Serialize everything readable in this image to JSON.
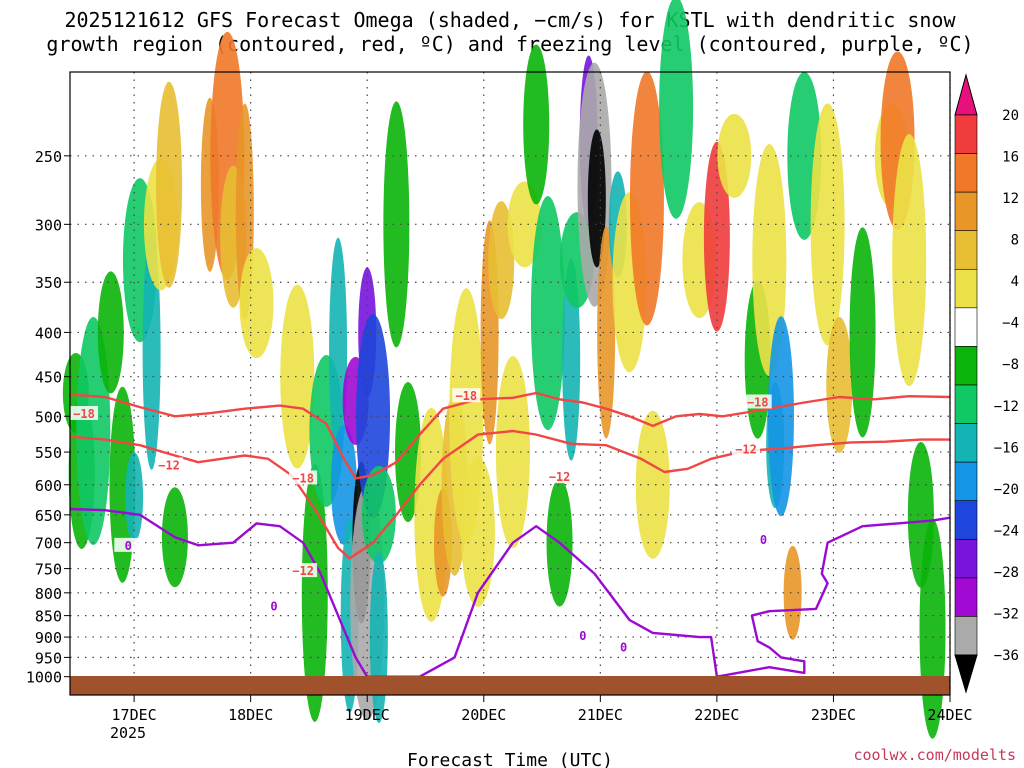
{
  "chart_data": {
    "type": "time-height cross section",
    "title_line1": "2025121612 GFS Forecast Omega (shaded, −cm/s) for KSTL with dendritic snow",
    "title_line2": "growth region (contoured, red, ºC) and freezing level (contoured, purple, ºC)",
    "xlabel": "Forecast Time (UTC)",
    "year_label": "2025",
    "credit": "coolwx.com/modelts",
    "x_range_days": [
      0,
      7.55
    ],
    "x_ticks": [
      {
        "label": "24DEC",
        "day": 7.55
      },
      {
        "label": "23DEC",
        "day": 6.55
      },
      {
        "label": "22DEC",
        "day": 5.55
      },
      {
        "label": "21DEC",
        "day": 4.55
      },
      {
        "label": "20DEC",
        "day": 3.55
      },
      {
        "label": "19DEC",
        "day": 2.55
      },
      {
        "label": "18DEC",
        "day": 1.55
      },
      {
        "label": "17DEC",
        "day": 0.55
      }
    ],
    "y_axis": {
      "scale": "log-pressure",
      "units": "hPa",
      "range": [
        1050,
        200
      ],
      "ticks": [
        250,
        300,
        350,
        400,
        450,
        500,
        550,
        600,
        650,
        700,
        750,
        800,
        850,
        900,
        950,
        1000
      ]
    },
    "colorbar": {
      "units": "-cm/s",
      "labels": [
        "20",
        "16",
        "12",
        "8",
        "4",
        "−4",
        "−8",
        "−12",
        "−16",
        "−20",
        "−24",
        "−28",
        "−32",
        "−36"
      ],
      "colors": [
        "#e8107a",
        "#f03c3c",
        "#f07828",
        "#e89628",
        "#e8be32",
        "#ebe146",
        "#ffffff",
        "#0ab40a",
        "#10c864",
        "#14b4b4",
        "#1496e6",
        "#1e46dc",
        "#7814dc",
        "#a00ad2",
        "#aaaaaa",
        "#000000"
      ]
    },
    "series": [
      {
        "name": "dendritic growth -18C isotherm",
        "color": "#f04646",
        "label": "−18",
        "points": [
          [
            0,
            472
          ],
          [
            0.3,
            475
          ],
          [
            0.6,
            488
          ],
          [
            0.9,
            500
          ],
          [
            1.2,
            496
          ],
          [
            1.5,
            490
          ],
          [
            1.8,
            486
          ],
          [
            2.0,
            490
          ],
          [
            2.2,
            510
          ],
          [
            2.35,
            560
          ],
          [
            2.45,
            590
          ],
          [
            2.6,
            585
          ],
          [
            2.8,
            565
          ],
          [
            3.0,
            525
          ],
          [
            3.2,
            490
          ],
          [
            3.5,
            478
          ],
          [
            3.8,
            476
          ],
          [
            4.0,
            470
          ],
          [
            4.2,
            478
          ],
          [
            4.4,
            482
          ],
          [
            4.6,
            490
          ],
          [
            4.8,
            500
          ],
          [
            5.0,
            513
          ],
          [
            5.2,
            500
          ],
          [
            5.4,
            497
          ],
          [
            5.6,
            500
          ],
          [
            5.8,
            495
          ],
          [
            6.0,
            490
          ],
          [
            6.3,
            482
          ],
          [
            6.6,
            475
          ],
          [
            6.9,
            478
          ],
          [
            7.2,
            474
          ],
          [
            7.55,
            475
          ]
        ]
      },
      {
        "name": "dendritic growth -12C isotherm",
        "color": "#f04646",
        "label": "−12",
        "points": [
          [
            0,
            528
          ],
          [
            0.3,
            532
          ],
          [
            0.6,
            540
          ],
          [
            0.9,
            555
          ],
          [
            1.1,
            565
          ],
          [
            1.3,
            560
          ],
          [
            1.5,
            555
          ],
          [
            1.7,
            560
          ],
          [
            1.9,
            585
          ],
          [
            2.1,
            640
          ],
          [
            2.3,
            710
          ],
          [
            2.4,
            730
          ],
          [
            2.6,
            700
          ],
          [
            2.8,
            650
          ],
          [
            3.0,
            600
          ],
          [
            3.2,
            560
          ],
          [
            3.5,
            525
          ],
          [
            3.8,
            520
          ],
          [
            4.0,
            525
          ],
          [
            4.3,
            538
          ],
          [
            4.6,
            540
          ],
          [
            4.9,
            560
          ],
          [
            5.1,
            580
          ],
          [
            5.3,
            575
          ],
          [
            5.5,
            560
          ],
          [
            5.8,
            548
          ],
          [
            6.1,
            545
          ],
          [
            6.4,
            540
          ],
          [
            6.7,
            536
          ],
          [
            7.0,
            535
          ],
          [
            7.3,
            532
          ],
          [
            7.55,
            532
          ]
        ]
      },
      {
        "name": "freezing level 0C",
        "color": "#9a0ad2",
        "label": "0",
        "points": [
          [
            0,
            640
          ],
          [
            0.3,
            642
          ],
          [
            0.6,
            650
          ],
          [
            0.9,
            690
          ],
          [
            1.1,
            705
          ],
          [
            1.4,
            700
          ],
          [
            1.6,
            665
          ],
          [
            1.8,
            670
          ],
          [
            2.0,
            700
          ],
          [
            2.15,
            760
          ],
          [
            2.3,
            850
          ],
          [
            2.45,
            950
          ],
          [
            2.55,
            1000
          ],
          [
            3.0,
            1000
          ],
          [
            3.3,
            950
          ],
          [
            3.5,
            800
          ],
          [
            3.8,
            700
          ],
          [
            4.0,
            670
          ],
          [
            4.2,
            700
          ],
          [
            4.5,
            760
          ],
          [
            4.8,
            860
          ],
          [
            5.0,
            890
          ],
          [
            5.2,
            895
          ],
          [
            5.4,
            900
          ],
          [
            5.5,
            900
          ],
          [
            5.55,
            1000
          ],
          [
            6.0,
            975
          ],
          [
            6.3,
            990
          ],
          [
            6.3,
            960
          ],
          [
            6.1,
            950
          ],
          [
            6.0,
            925
          ],
          [
            5.9,
            910
          ],
          [
            5.85,
            850
          ],
          [
            6.0,
            840
          ],
          [
            6.4,
            835
          ],
          [
            6.5,
            780
          ],
          [
            6.45,
            760
          ],
          [
            6.5,
            700
          ],
          [
            6.8,
            670
          ],
          [
            7.1,
            665
          ],
          [
            7.4,
            660
          ],
          [
            7.55,
            655
          ]
        ]
      }
    ],
    "contour_labels": [
      {
        "text": "−18",
        "day": 0.12,
        "p": 497
      },
      {
        "text": "−12",
        "day": 0.85,
        "p": 570
      },
      {
        "text": "−18",
        "day": 2.0,
        "p": 590
      },
      {
        "text": "−12",
        "day": 2.0,
        "p": 755
      },
      {
        "text": "−18",
        "day": 3.4,
        "p": 474
      },
      {
        "text": "−12",
        "day": 4.2,
        "p": 588
      },
      {
        "text": "−18",
        "day": 5.9,
        "p": 482
      },
      {
        "text": "−12",
        "day": 5.8,
        "p": 546
      },
      {
        "text": "0",
        "day": 0.5,
        "p": 706
      },
      {
        "text": "0",
        "day": 1.75,
        "p": 830
      },
      {
        "text": "0",
        "day": 4.4,
        "p": 898
      },
      {
        "text": "0",
        "day": 4.75,
        "p": 925
      },
      {
        "text": "0",
        "day": 5.95,
        "p": 695
      }
    ],
    "omega_cells": [
      {
        "day": 0.05,
        "p": 470,
        "c": 7
      },
      {
        "day": 0.1,
        "p": 580,
        "c": 7
      },
      {
        "day": 0.2,
        "p": 520,
        "c": 8
      },
      {
        "day": 0.35,
        "p": 400,
        "c": 7
      },
      {
        "day": 0.45,
        "p": 600,
        "c": 7
      },
      {
        "day": 0.55,
        "p": 620,
        "c": 9
      },
      {
        "day": 0.6,
        "p": 330,
        "c": 8
      },
      {
        "day": 0.7,
        "p": 420,
        "c": 9
      },
      {
        "day": 0.78,
        "p": 300,
        "c": 5
      },
      {
        "day": 0.85,
        "p": 270,
        "c": 4
      },
      {
        "day": 0.9,
        "p": 690,
        "c": 7
      },
      {
        "day": 1.2,
        "p": 270,
        "c": 3
      },
      {
        "day": 1.35,
        "p": 250,
        "c": 2
      },
      {
        "day": 1.4,
        "p": 310,
        "c": 4
      },
      {
        "day": 1.5,
        "p": 290,
        "c": 3
      },
      {
        "day": 1.6,
        "p": 370,
        "c": 5
      },
      {
        "day": 1.95,
        "p": 450,
        "c": 5
      },
      {
        "day": 2.1,
        "p": 800,
        "c": 7
      },
      {
        "day": 2.2,
        "p": 520,
        "c": 8
      },
      {
        "day": 2.3,
        "p": 420,
        "c": 9
      },
      {
        "day": 2.35,
        "p": 600,
        "c": 10
      },
      {
        "day": 2.4,
        "p": 850,
        "c": 9
      },
      {
        "day": 2.45,
        "p": 480,
        "c": 13
      },
      {
        "day": 2.5,
        "p": 700,
        "c": 15
      },
      {
        "day": 2.55,
        "p": 820,
        "c": 14
      },
      {
        "day": 2.55,
        "p": 400,
        "c": 12
      },
      {
        "day": 2.6,
        "p": 500,
        "c": 11
      },
      {
        "day": 2.65,
        "p": 650,
        "c": 8
      },
      {
        "day": 2.65,
        "p": 900,
        "c": 9
      },
      {
        "day": 2.8,
        "p": 300,
        "c": 7
      },
      {
        "day": 2.9,
        "p": 550,
        "c": 7
      },
      {
        "day": 3.1,
        "p": 650,
        "c": 5
      },
      {
        "day": 3.2,
        "p": 700,
        "c": 3
      },
      {
        "day": 3.3,
        "p": 600,
        "c": 4
      },
      {
        "day": 3.4,
        "p": 500,
        "c": 5
      },
      {
        "day": 3.5,
        "p": 680,
        "c": 5
      },
      {
        "day": 3.6,
        "p": 400,
        "c": 3
      },
      {
        "day": 3.7,
        "p": 330,
        "c": 4
      },
      {
        "day": 3.8,
        "p": 550,
        "c": 5
      },
      {
        "day": 3.9,
        "p": 300,
        "c": 5
      },
      {
        "day": 4.0,
        "p": 230,
        "c": 7
      },
      {
        "day": 4.1,
        "p": 380,
        "c": 8
      },
      {
        "day": 4.2,
        "p": 700,
        "c": 7
      },
      {
        "day": 4.3,
        "p": 430,
        "c": 9
      },
      {
        "day": 4.35,
        "p": 330,
        "c": 8
      },
      {
        "day": 4.45,
        "p": 240,
        "c": 12
      },
      {
        "day": 4.5,
        "p": 270,
        "c": 14
      },
      {
        "day": 4.52,
        "p": 280,
        "c": 15
      },
      {
        "day": 4.6,
        "p": 400,
        "c": 3
      },
      {
        "day": 4.7,
        "p": 300,
        "c": 9
      },
      {
        "day": 4.8,
        "p": 350,
        "c": 5
      },
      {
        "day": 4.95,
        "p": 280,
        "c": 2
      },
      {
        "day": 5.0,
        "p": 600,
        "c": 5
      },
      {
        "day": 5.2,
        "p": 220,
        "c": 8
      },
      {
        "day": 5.4,
        "p": 330,
        "c": 5
      },
      {
        "day": 5.55,
        "p": 310,
        "c": 1
      },
      {
        "day": 5.7,
        "p": 250,
        "c": 5
      },
      {
        "day": 5.9,
        "p": 430,
        "c": 7
      },
      {
        "day": 6.0,
        "p": 330,
        "c": 5
      },
      {
        "day": 6.05,
        "p": 540,
        "c": 9
      },
      {
        "day": 6.1,
        "p": 500,
        "c": 10
      },
      {
        "day": 6.2,
        "p": 800,
        "c": 3
      },
      {
        "day": 6.3,
        "p": 250,
        "c": 8
      },
      {
        "day": 6.5,
        "p": 300,
        "c": 5
      },
      {
        "day": 6.6,
        "p": 460,
        "c": 4
      },
      {
        "day": 6.8,
        "p": 400,
        "c": 7
      },
      {
        "day": 7.05,
        "p": 250,
        "c": 5
      },
      {
        "day": 7.1,
        "p": 240,
        "c": 2
      },
      {
        "day": 7.2,
        "p": 330,
        "c": 5
      },
      {
        "day": 7.3,
        "p": 650,
        "c": 7
      },
      {
        "day": 7.4,
        "p": 880,
        "c": 7
      }
    ]
  }
}
